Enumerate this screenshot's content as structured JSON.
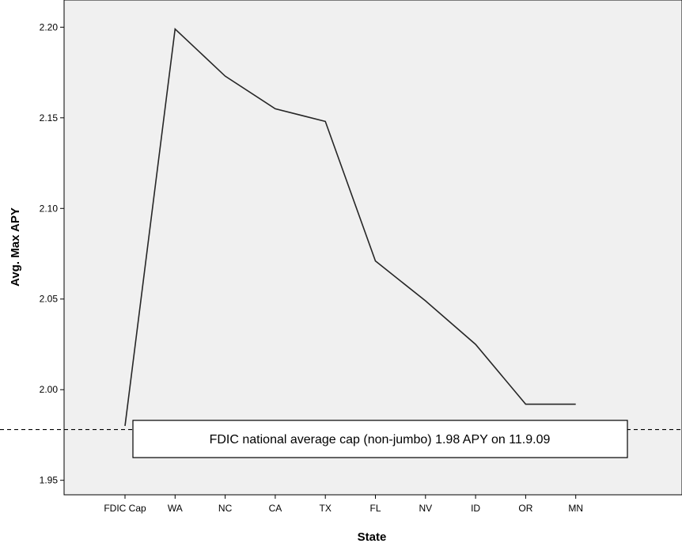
{
  "chart_data": {
    "type": "line",
    "title": "",
    "xlabel": "State",
    "ylabel": "Avg. Max APY",
    "categories": [
      "FDIC Cap",
      "WA",
      "NC",
      "CA",
      "TX",
      "FL",
      "NV",
      "ID",
      "OR",
      "MN"
    ],
    "series": [
      {
        "values": [
          1.98,
          2.199,
          2.173,
          2.155,
          2.148,
          2.071,
          2.049,
          2.025,
          1.992,
          1.992
        ]
      }
    ],
    "y_ticks": [
      "1.95",
      "2.00",
      "2.05",
      "2.10",
      "2.15",
      "2.20"
    ],
    "ylim": [
      1.942,
      2.215
    ],
    "reference_line": {
      "value": 1.978,
      "style": "dashed"
    },
    "annotation": "FDIC national average cap (non-jumbo) 1.98 APY on 11.9.09",
    "grid": false,
    "plot_background": "#f0f0f0",
    "line_color": "#262626"
  }
}
